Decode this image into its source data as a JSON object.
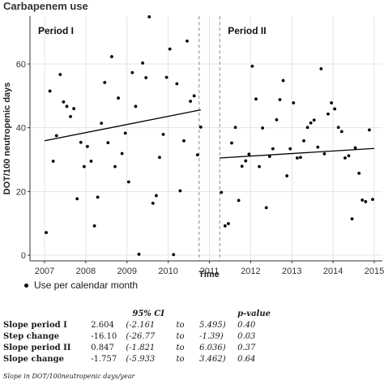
{
  "chart_data": {
    "type": "scatter",
    "title": "Carbapenem use",
    "xlabel": "Time",
    "ylabel": "DOT/100 neutropenic days",
    "xlim": [
      2007,
      2015
    ],
    "ylim": [
      0,
      75
    ],
    "x_ticks": [
      "2007",
      "2008",
      "2009",
      "2010",
      "2011",
      "2012",
      "2013",
      "2014",
      "2015"
    ],
    "y_ticks": [
      "0",
      "20",
      "40",
      "60"
    ],
    "grid": true,
    "periods": [
      {
        "label": "Period I",
        "break_at": 2010.75
      },
      {
        "label": "Period II",
        "break_at": 2011.25
      }
    ],
    "series": [
      {
        "legend": "Use per calendar month",
        "points": [
          [
            2007.04,
            7.1
          ],
          [
            2007.13,
            51.5
          ],
          [
            2007.21,
            29.5
          ],
          [
            2007.29,
            37.5
          ],
          [
            2007.38,
            56.7
          ],
          [
            2007.46,
            48.1
          ],
          [
            2007.54,
            46.7
          ],
          [
            2007.63,
            43.5
          ],
          [
            2007.71,
            46.0
          ],
          [
            2007.79,
            17.7
          ],
          [
            2007.88,
            35.4
          ],
          [
            2007.96,
            27.8
          ],
          [
            2008.04,
            34.1
          ],
          [
            2008.13,
            29.5
          ],
          [
            2008.21,
            9.2
          ],
          [
            2008.29,
            18.2
          ],
          [
            2008.38,
            41.4
          ],
          [
            2008.46,
            54.2
          ],
          [
            2008.54,
            35.3
          ],
          [
            2008.63,
            62.3
          ],
          [
            2008.71,
            27.8
          ],
          [
            2008.79,
            49.3
          ],
          [
            2008.88,
            31.9
          ],
          [
            2008.96,
            38.3
          ],
          [
            2009.04,
            23.0
          ],
          [
            2009.13,
            57.3
          ],
          [
            2009.21,
            46.7
          ],
          [
            2009.29,
            0.3
          ],
          [
            2009.38,
            60.3
          ],
          [
            2009.46,
            55.7
          ],
          [
            2009.54,
            74.8
          ],
          [
            2009.63,
            16.3
          ],
          [
            2009.71,
            18.7
          ],
          [
            2009.79,
            30.7
          ],
          [
            2009.88,
            37.9
          ],
          [
            2009.96,
            55.8
          ],
          [
            2010.04,
            64.7
          ],
          [
            2010.13,
            0.2
          ],
          [
            2010.21,
            53.8
          ],
          [
            2010.29,
            20.2
          ],
          [
            2010.38,
            35.9
          ],
          [
            2010.46,
            67.2
          ],
          [
            2010.54,
            48.3
          ],
          [
            2010.63,
            50.0
          ],
          [
            2010.71,
            31.5
          ],
          [
            2010.79,
            40.2
          ],
          [
            2011.29,
            19.7
          ],
          [
            2011.38,
            9.2
          ],
          [
            2011.46,
            9.9
          ],
          [
            2011.54,
            35.2
          ],
          [
            2011.63,
            40.1
          ],
          [
            2011.71,
            17.2
          ],
          [
            2011.79,
            27.9
          ],
          [
            2011.88,
            29.6
          ],
          [
            2011.96,
            31.7
          ],
          [
            2012.04,
            59.3
          ],
          [
            2012.13,
            49.0
          ],
          [
            2012.21,
            27.8
          ],
          [
            2012.29,
            39.9
          ],
          [
            2012.38,
            14.9
          ],
          [
            2012.46,
            31.0
          ],
          [
            2012.54,
            33.4
          ],
          [
            2012.63,
            42.5
          ],
          [
            2012.71,
            48.8
          ],
          [
            2012.79,
            54.8
          ],
          [
            2012.88,
            24.9
          ],
          [
            2012.96,
            33.4
          ],
          [
            2013.04,
            47.8
          ],
          [
            2013.13,
            30.5
          ],
          [
            2013.21,
            30.7
          ],
          [
            2013.29,
            35.9
          ],
          [
            2013.38,
            40.1
          ],
          [
            2013.46,
            41.5
          ],
          [
            2013.54,
            42.4
          ],
          [
            2013.63,
            33.9
          ],
          [
            2013.71,
            58.5
          ],
          [
            2013.79,
            31.8
          ],
          [
            2013.88,
            44.3
          ],
          [
            2013.96,
            47.8
          ],
          [
            2014.04,
            45.9
          ],
          [
            2014.13,
            40.1
          ],
          [
            2014.21,
            38.8
          ],
          [
            2014.29,
            30.5
          ],
          [
            2014.38,
            31.2
          ],
          [
            2014.46,
            11.4
          ],
          [
            2014.54,
            33.7
          ],
          [
            2014.63,
            25.7
          ],
          [
            2014.71,
            17.3
          ],
          [
            2014.79,
            16.8
          ],
          [
            2014.88,
            39.3
          ],
          [
            2014.96,
            17.5
          ]
        ]
      }
    ],
    "trend_lines": [
      {
        "x": [
          2007.0,
          2010.79
        ],
        "y": [
          35.9,
          45.6
        ]
      },
      {
        "x": [
          2011.25,
          2015.0
        ],
        "y": [
          30.5,
          33.5
        ]
      }
    ]
  },
  "table": {
    "col_ci": "95% CI",
    "col_p": "p-value",
    "rows": [
      {
        "label": "Slope period I",
        "est": "2.604",
        "lo": "(-2.161",
        "to": "to",
        "hi": "5.495)",
        "p": "0.40"
      },
      {
        "label": "Step change",
        "est": "-16.10",
        "lo": "(-26.77",
        "to": "to",
        "hi": "-1.39)",
        "p": "0.03"
      },
      {
        "label": "Slope period II",
        "est": "0.847",
        "lo": "(-1.821",
        "to": "to",
        "hi": "6.036)",
        "p": "0.37"
      },
      {
        "label": "Slope change",
        "est": "-1.757",
        "lo": "(-5.933",
        "to": "to",
        "hi": "3.462)",
        "p": "0.64"
      }
    ],
    "footnote": "Slope in DOT/100neutropenic days/year"
  }
}
